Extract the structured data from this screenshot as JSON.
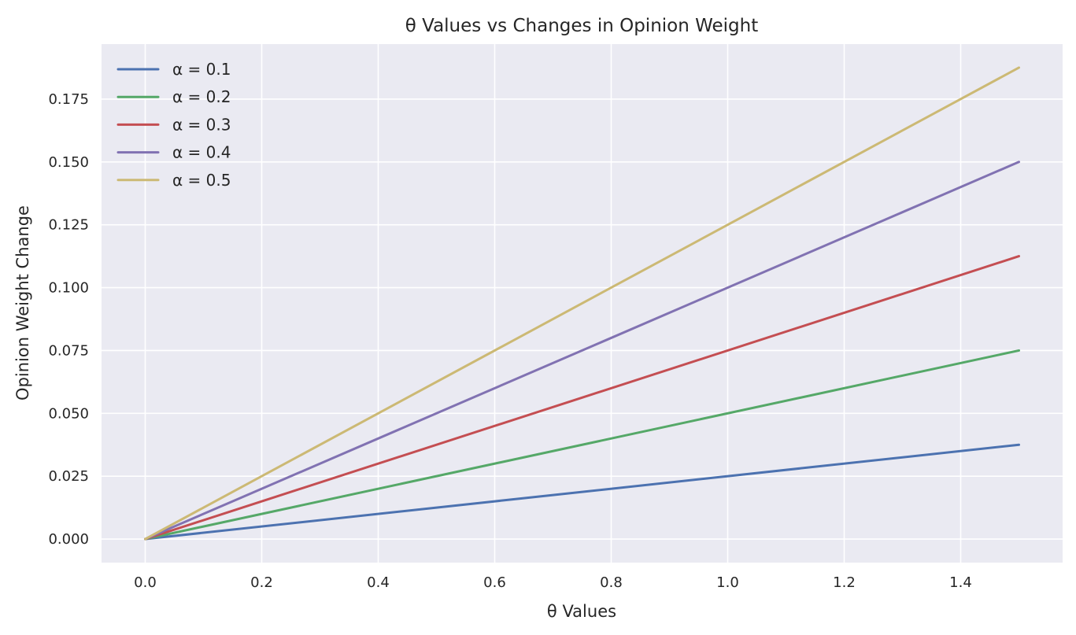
{
  "chart_data": {
    "type": "line",
    "title": "θ Values vs Changes in Opinion Weight",
    "xlabel": "θ Values",
    "ylabel": "Opinion Weight Change",
    "xlim": [
      -0.075,
      1.575
    ],
    "ylim": [
      -0.009375,
      0.196875
    ],
    "xticks": [
      0.0,
      0.2,
      0.4,
      0.6,
      0.8,
      1.0,
      1.2,
      1.4
    ],
    "xtick_labels": [
      "0.0",
      "0.2",
      "0.4",
      "0.6",
      "0.8",
      "1.0",
      "1.2",
      "1.4"
    ],
    "yticks": [
      0.0,
      0.025,
      0.05,
      0.075,
      0.1,
      0.125,
      0.15,
      0.175
    ],
    "ytick_labels": [
      "0.000",
      "0.025",
      "0.050",
      "0.075",
      "0.100",
      "0.125",
      "0.150",
      "0.175"
    ],
    "grid": true,
    "legend_position": "top-left",
    "background_color": "#eaeaf2",
    "series": [
      {
        "name": "α = 0.1",
        "color": "#4c72b0",
        "x": [
          0.0,
          1.5
        ],
        "y": [
          0.0,
          0.0375
        ]
      },
      {
        "name": "α = 0.2",
        "color": "#55a868",
        "x": [
          0.0,
          1.5
        ],
        "y": [
          0.0,
          0.075
        ]
      },
      {
        "name": "α = 0.3",
        "color": "#c44e52",
        "x": [
          0.0,
          1.5
        ],
        "y": [
          0.0,
          0.1125
        ]
      },
      {
        "name": "α = 0.4",
        "color": "#8172b2",
        "x": [
          0.0,
          1.5
        ],
        "y": [
          0.0,
          0.15
        ]
      },
      {
        "name": "α = 0.5",
        "color": "#ccb974",
        "x": [
          0.0,
          1.5
        ],
        "y": [
          0.0,
          0.1875
        ]
      }
    ]
  }
}
